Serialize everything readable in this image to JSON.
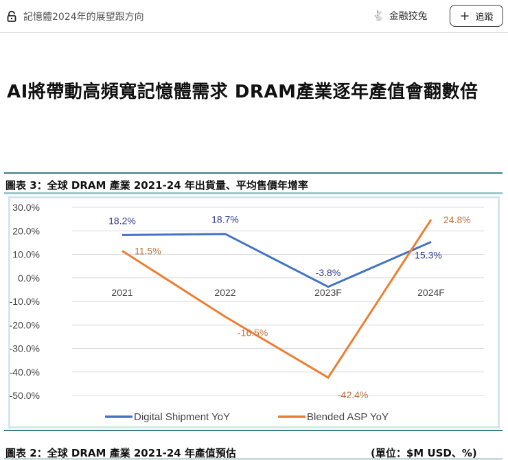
{
  "topbar": {
    "breadcrumb": "記憶體2024年的展望跟方向",
    "brand": "金融狡兔",
    "follow_label": "追蹤",
    "follow_icon": "plus-icon",
    "lock_icon": "lock-icon"
  },
  "article": {
    "title": "AI將帶動高頻寬記憶體需求 DRAM產業逐年產值會翻數倍"
  },
  "figure3": {
    "caption": "圖表 3：全球 DRAM 產業 2021-24 年出貨量、平均售價年增率"
  },
  "figure2": {
    "caption": "圖表 2：全球 DRAM 產業 2021-24 年產值預估",
    "unit": "(單位：$M USD、%)"
  },
  "chart_data": {
    "type": "line",
    "categories": [
      "2021",
      "2022",
      "2023F",
      "2024F"
    ],
    "ylim": [
      -50,
      30
    ],
    "yticks": [
      "30.0%",
      "20.0%",
      "10.0%",
      "0.0%",
      "-10.0%",
      "-20.0%",
      "-30.0%",
      "-40.0%",
      "-50.0%"
    ],
    "grid": true,
    "legend": "bottom",
    "series": [
      {
        "name": "Digital Shipment YoY",
        "values": [
          18.2,
          18.7,
          -3.8,
          15.3
        ],
        "labels": [
          "18.2%",
          "18.7%",
          "-3.8%",
          "15.3%"
        ],
        "color": "#4472c4",
        "label_color": "#2e3a8c"
      },
      {
        "name": "Blended ASP YoY",
        "values": [
          11.5,
          -16.5,
          -42.4,
          24.8
        ],
        "labels": [
          "11.5%",
          "-16.5%",
          "-42.4%",
          "24.8%"
        ],
        "color": "#ed7d31",
        "label_color": "#c0703a"
      }
    ]
  }
}
